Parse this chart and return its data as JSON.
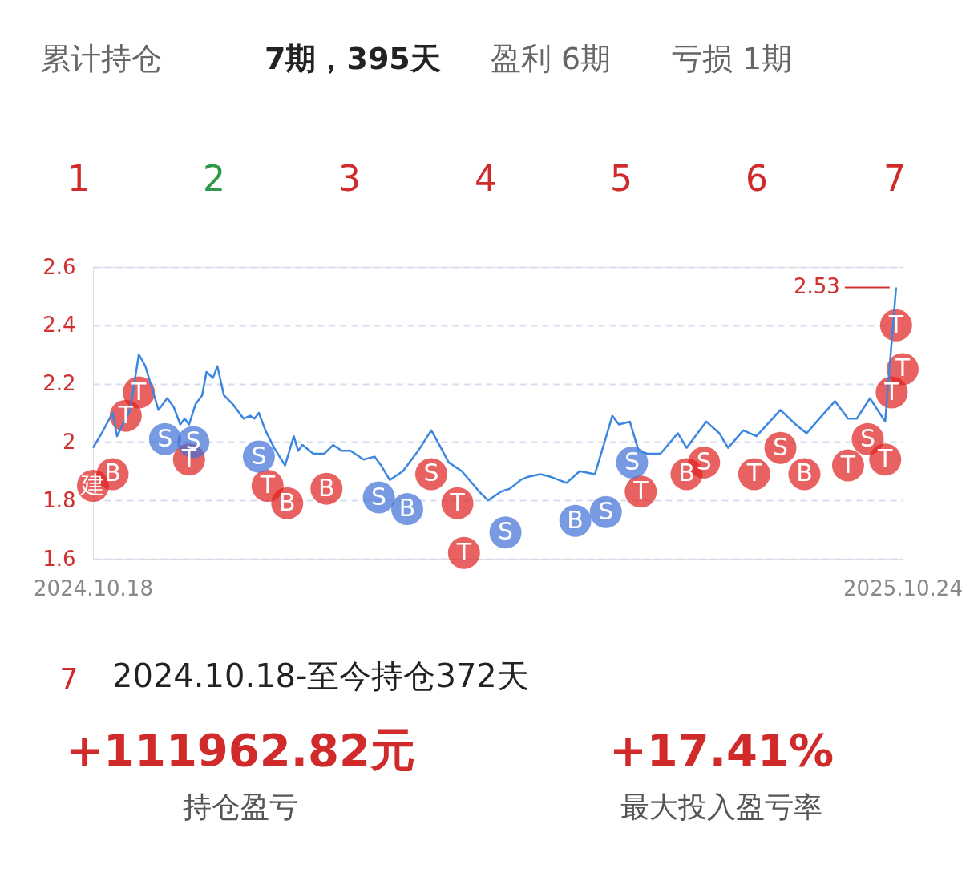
{
  "chart_data": {
    "type": "line",
    "x": [
      "2024-10-18",
      "2024-10-22",
      "2024-10-27",
      "2024-10-29",
      "2024-11-04",
      "2024-11-08",
      "2024-11-11",
      "2024-11-17",
      "2024-11-21",
      "2024-11-24",
      "2024-11-27",
      "2024-11-29",
      "2024-12-01",
      "2024-12-04",
      "2024-12-07",
      "2024-12-09",
      "2024-12-12",
      "2024-12-14",
      "2024-12-17",
      "2024-12-21",
      "2024-12-26",
      "2024-12-29",
      "2024-12-31",
      "2025-01-02",
      "2025-01-05",
      "2025-01-09",
      "2025-01-14",
      "2025-01-18",
      "2025-01-20",
      "2025-01-22",
      "2025-01-27",
      "2025-02-01",
      "2025-02-05",
      "2025-02-09",
      "2025-02-13",
      "2025-02-19",
      "2025-02-24",
      "2025-02-27",
      "2025-03-03",
      "2025-03-09",
      "2025-03-16",
      "2025-03-22",
      "2025-03-25",
      "2025-03-30",
      "2025-04-05",
      "2025-04-13",
      "2025-04-17",
      "2025-04-23",
      "2025-04-27",
      "2025-05-02",
      "2025-05-05",
      "2025-05-11",
      "2025-05-16",
      "2025-05-23",
      "2025-05-29",
      "2025-06-05",
      "2025-06-13",
      "2025-06-16",
      "2025-06-21",
      "2025-06-25",
      "2025-06-29",
      "2025-07-05",
      "2025-07-13",
      "2025-07-17",
      "2025-07-26",
      "2025-08-01",
      "2025-08-05",
      "2025-08-12",
      "2025-08-18",
      "2025-08-29",
      "2025-09-05",
      "2025-09-10",
      "2025-09-17",
      "2025-09-23",
      "2025-09-29",
      "2025-10-03",
      "2025-10-09",
      "2025-10-16",
      "2025-10-21"
    ],
    "series": [
      {
        "color": "#3a86e0",
        "values": [
          1.98,
          2.03,
          2.1,
          2.02,
          2.11,
          2.3,
          2.26,
          2.11,
          2.15,
          2.12,
          2.06,
          2.08,
          2.06,
          2.13,
          2.16,
          2.24,
          2.22,
          2.26,
          2.16,
          2.13,
          2.08,
          2.09,
          2.08,
          2.1,
          2.04,
          1.98,
          1.92,
          2.02,
          1.97,
          1.99,
          1.96,
          1.96,
          1.99,
          1.97,
          1.97,
          1.94,
          1.95,
          1.92,
          1.87,
          1.9,
          1.97,
          2.04,
          2.0,
          1.93,
          1.9,
          1.83,
          1.8,
          1.83,
          1.84,
          1.87,
          1.88,
          1.89,
          1.88,
          1.86,
          1.9,
          1.89,
          2.09,
          2.06,
          2.07,
          1.97,
          1.96,
          1.96,
          2.03,
          1.98,
          2.07,
          2.03,
          1.98,
          2.04,
          2.02,
          2.11,
          2.06,
          2.03,
          2.09,
          2.14,
          2.08,
          2.08,
          2.15,
          2.07,
          2.53
        ]
      },
      {
        "type": "scatter",
        "marker": "circle",
        "color": "#e02020",
        "x": [
          "2024-10-18",
          "2024-10-27",
          "2024-11-02",
          "2024-11-08",
          "2024-12-01",
          "2025-01-06",
          "2025-01-15",
          "2025-02-02",
          "2025-03-22",
          "2025-04-03",
          "2025-04-06",
          "2025-06-26",
          "2025-07-17",
          "2025-07-25",
          "2025-08-17",
          "2025-08-29",
          "2025-09-09",
          "2025-09-29",
          "2025-10-08",
          "2025-10-16",
          "2025-10-19",
          "2025-10-21",
          "2025-10-24"
        ],
        "values": [
          1.85,
          1.89,
          2.09,
          2.17,
          1.94,
          1.85,
          1.79,
          1.84,
          1.89,
          1.79,
          1.62,
          1.83,
          1.89,
          1.93,
          1.89,
          1.98,
          1.89,
          1.92,
          2.01,
          1.94,
          2.17,
          2.4,
          2.25
        ],
        "value_labels": [
          "建",
          "B",
          "T",
          "T",
          "T",
          "T",
          "B",
          "B",
          "S",
          "T",
          "T",
          "T",
          "B",
          "S",
          "T",
          "S",
          "B",
          "T",
          "S",
          "T",
          "T",
          "T",
          "T"
        ]
      },
      {
        "type": "scatter",
        "marker": "circle",
        "color": "#3f6fd6",
        "x": [
          "2024-11-20",
          "2024-12-03",
          "2025-01-02",
          "2025-02-26",
          "2025-03-11",
          "2025-04-25",
          "2025-05-27",
          "2025-06-10",
          "2025-06-22"
        ],
        "values": [
          2.01,
          2.0,
          1.95,
          1.81,
          1.77,
          1.69,
          1.73,
          1.76,
          1.93
        ],
        "value_labels": [
          "S",
          "S",
          "S",
          "S",
          "B",
          "S",
          "B",
          "S",
          "S"
        ]
      }
    ],
    "xlim": [
      "2024-10-18",
      "2025-10-24"
    ],
    "xticks": [
      {
        "value": "2024-10-18",
        "label": "2024.10.18"
      },
      {
        "value": "2025-10-24",
        "label": "2025.10.24"
      }
    ],
    "ylim": [
      1.6,
      2.6
    ],
    "yticks": [
      1.6,
      1.8,
      2,
      2.2,
      2.4,
      2.6
    ],
    "grid": "y",
    "marker": "none",
    "line_style": "solid",
    "annotations": [
      {
        "text": "2.53",
        "x": "2025-10-21",
        "y": 2.53
      },
      "累计持仓",
      "7期，395天",
      "盈利 6期",
      "亏损 1期",
      "1",
      "2",
      "3",
      "4",
      "5",
      "6",
      "7",
      "7",
      "2024.10.18-至今持仓372天",
      "+111962.82元",
      "持仓盈亏",
      "+17.41%",
      "最大投入盈亏率"
    ]
  }
}
